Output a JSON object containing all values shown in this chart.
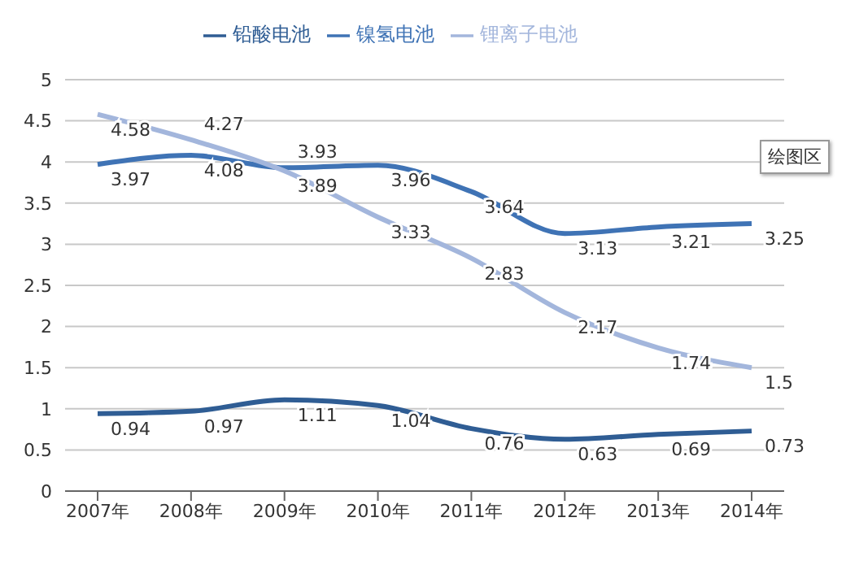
{
  "chart_data": {
    "type": "line",
    "categories": [
      "2007年",
      "2008年",
      "2009年",
      "2010年",
      "2011年",
      "2012年",
      "2013年",
      "2014年"
    ],
    "series": [
      {
        "name": "铅酸电池",
        "color": "#2f5d94",
        "values": [
          0.94,
          0.97,
          1.11,
          1.04,
          0.76,
          0.63,
          0.69,
          0.73
        ]
      },
      {
        "name": "镍氢电池",
        "color": "#3f73b5",
        "values": [
          3.97,
          4.08,
          3.93,
          3.96,
          3.64,
          3.13,
          3.21,
          3.25
        ]
      },
      {
        "name": "锂离子电池",
        "color": "#a3b6dc",
        "values": [
          4.58,
          4.27,
          3.89,
          3.33,
          2.83,
          2.17,
          1.74,
          1.5
        ]
      }
    ],
    "ylim": [
      0,
      5
    ],
    "yticks": [
      0,
      0.5,
      1,
      1.5,
      2,
      2.5,
      3,
      3.5,
      4,
      4.5,
      5
    ],
    "grid": "y",
    "legend": "top",
    "marker": "none",
    "line_style": "solid",
    "data_labels": true,
    "annotations": [
      "绘图区"
    ]
  }
}
